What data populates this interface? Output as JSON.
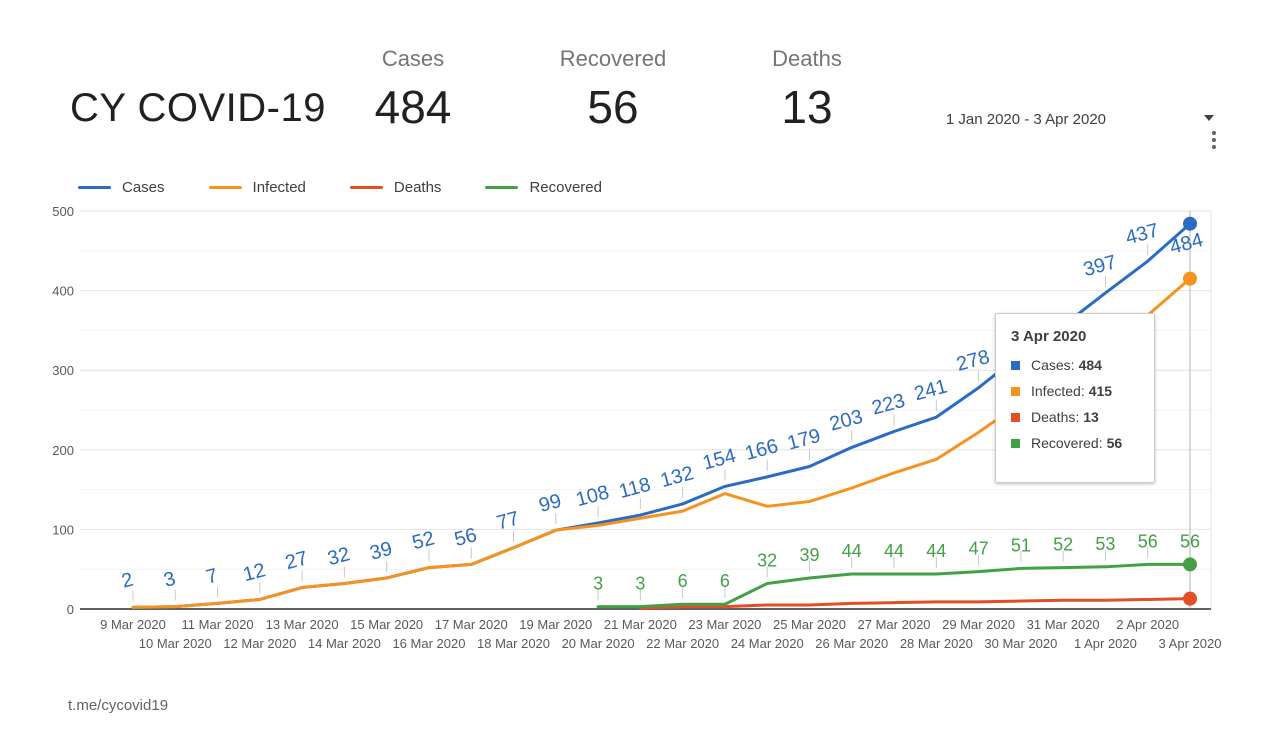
{
  "header": {
    "title": "CY COVID-19",
    "stats": [
      {
        "label": "Cases",
        "value": "484"
      },
      {
        "label": "Recovered",
        "value": "56"
      },
      {
        "label": "Deaths",
        "value": "13"
      }
    ],
    "date_range": "1 Jan 2020 - 3 Apr 2020",
    "icons": {
      "caret": "caret-down-icon",
      "menu": "kebab-menu-icon"
    }
  },
  "legend": {
    "items": [
      {
        "label": "Cases",
        "color": "#2b6bc4"
      },
      {
        "label": "Infected",
        "color": "#f6921e"
      },
      {
        "label": "Deaths",
        "color": "#e44d26"
      },
      {
        "label": "Recovered",
        "color": "#43a047"
      }
    ]
  },
  "tooltip": {
    "date": "3 Apr 2020",
    "rows": [
      {
        "label": "Cases:",
        "value": "484",
        "color": "#2b6bc4"
      },
      {
        "label": "Infected:",
        "value": "415",
        "color": "#f6921e"
      },
      {
        "label": "Deaths:",
        "value": "13",
        "color": "#e44d26"
      },
      {
        "label": "Recovered:",
        "value": "56",
        "color": "#43a047"
      }
    ]
  },
  "footer": {
    "link": "t.me/cycovid19"
  },
  "chart_data": {
    "type": "line",
    "title": "CY COVID-19 daily totals",
    "xlabel": "",
    "ylabel": "",
    "ylim": [
      0,
      500
    ],
    "y_ticks": [
      0,
      100,
      200,
      300,
      400,
      500
    ],
    "y_minor_ticks": [
      50,
      150,
      250,
      350,
      450
    ],
    "grid": true,
    "legend_position": "top",
    "selected_x": "3 Apr 2020",
    "x_dates": [
      "9 Mar 2020",
      "10 Mar 2020",
      "11 Mar 2020",
      "12 Mar 2020",
      "13 Mar 2020",
      "14 Mar 2020",
      "15 Mar 2020",
      "16 Mar 2020",
      "17 Mar 2020",
      "18 Mar 2020",
      "19 Mar 2020",
      "20 Mar 2020",
      "21 Mar 2020",
      "22 Mar 2020",
      "23 Mar 2020",
      "24 Mar 2020",
      "25 Mar 2020",
      "26 Mar 2020",
      "27 Mar 2020",
      "28 Mar 2020",
      "29 Mar 2020",
      "30 Mar 2020",
      "31 Mar 2020",
      "1 Apr 2020",
      "2 Apr 2020",
      "3 Apr 2020"
    ],
    "series": [
      {
        "name": "Cases",
        "color": "#2b6bc4",
        "start_index": 0,
        "show_labels": true,
        "hidden_label_indices": [
          21,
          22
        ],
        "values": [
          2,
          3,
          7,
          12,
          27,
          32,
          39,
          52,
          56,
          77,
          99,
          108,
          118,
          132,
          154,
          166,
          179,
          203,
          223,
          241,
          278,
          320,
          356,
          397,
          437,
          484
        ]
      },
      {
        "name": "Infected",
        "color": "#f6921e",
        "start_index": 0,
        "show_labels": false,
        "hidden_label_indices": [],
        "values": [
          2,
          3,
          7,
          12,
          27,
          32,
          39,
          52,
          56,
          77,
          99,
          105,
          114,
          123,
          145,
          129,
          135,
          152,
          171,
          188,
          222,
          259,
          293,
          333,
          369,
          415
        ]
      },
      {
        "name": "Deaths",
        "color": "#e44d26",
        "start_index": 12,
        "show_labels": false,
        "hidden_label_indices": [],
        "values": [
          1,
          3,
          3,
          5,
          5,
          7,
          8,
          9,
          9,
          10,
          11,
          11,
          12,
          13
        ]
      },
      {
        "name": "Recovered",
        "color": "#43a047",
        "start_index": 11,
        "show_labels": true,
        "hidden_label_indices": [],
        "values": [
          3,
          3,
          6,
          6,
          32,
          39,
          44,
          44,
          44,
          47,
          51,
          52,
          53,
          56,
          56
        ]
      }
    ]
  }
}
